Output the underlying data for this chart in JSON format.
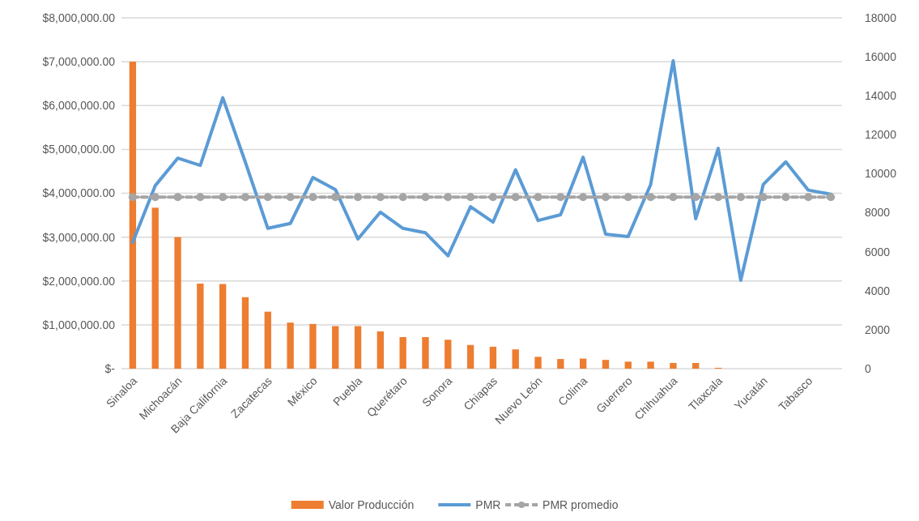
{
  "chart_data": {
    "type": "bar",
    "categories": [
      "Sinaloa",
      null,
      "Michoacán",
      null,
      "Baja California",
      null,
      "Zacatecas",
      null,
      "México",
      null,
      "Puebla",
      null,
      "Querétaro",
      null,
      "Sonora",
      null,
      "Chiapas",
      null,
      "Nuevo León",
      null,
      "Colima",
      null,
      "Guerrero",
      null,
      "Chihuahua",
      null,
      "Tlaxcala",
      null,
      "Yucatán",
      null,
      "Tabasco",
      null
    ],
    "series": [
      {
        "name": "Valor Producción",
        "color": "#ed7d31",
        "values": [
          7000000,
          3670000,
          3000000,
          1940000,
          1930000,
          1630000,
          1300000,
          1050000,
          1020000,
          970000,
          970000,
          850000,
          720000,
          720000,
          660000,
          540000,
          500000,
          440000,
          270000,
          220000,
          230000,
          200000,
          160000,
          160000,
          130000,
          130000,
          20000,
          0,
          0,
          0,
          0,
          0
        ]
      },
      {
        "name": "PMR",
        "type": "line",
        "axis": "y2",
        "color": "#5b9bd5",
        "marker": "none",
        "line_style": "solid",
        "values": [
          6480,
          9390,
          10800,
          10430,
          13900,
          10600,
          7200,
          7450,
          9810,
          9190,
          6650,
          8030,
          7200,
          6970,
          5790,
          8310,
          7520,
          10200,
          7600,
          7900,
          10850,
          6900,
          6780,
          9450,
          15800,
          7690,
          11300,
          4530,
          9450,
          10610,
          9160,
          8950
        ]
      },
      {
        "name": "PMR promedio",
        "type": "line",
        "axis": "y2",
        "color": "#a5a5a5",
        "marker": "circle",
        "line_style": "dashed",
        "values": [
          8800,
          8800,
          8800,
          8800,
          8800,
          8800,
          8800,
          8800,
          8800,
          8800,
          8800,
          8800,
          8800,
          8800,
          8800,
          8800,
          8800,
          8800,
          8800,
          8800,
          8800,
          8800,
          8800,
          8800,
          8800,
          8800,
          8800,
          8800,
          8800,
          8800,
          8800,
          8800
        ]
      }
    ],
    "ylim": [
      0,
      8000000
    ],
    "yticks": [
      {
        "value": 0,
        "label": "$-"
      },
      {
        "value": 1000000,
        "label": "$1,000,000.00"
      },
      {
        "value": 2000000,
        "label": "$2,000,000.00"
      },
      {
        "value": 3000000,
        "label": "$3,000,000.00"
      },
      {
        "value": 4000000,
        "label": "$4,000,000.00"
      },
      {
        "value": 5000000,
        "label": "$5,000,000.00"
      },
      {
        "value": 6000000,
        "label": "$6,000,000.00"
      },
      {
        "value": 7000000,
        "label": "$7,000,000.00"
      },
      {
        "value": 8000000,
        "label": "$8,000,000.00"
      }
    ],
    "y2lim": [
      0,
      18000
    ],
    "y2ticks": [
      0,
      2000,
      4000,
      6000,
      8000,
      10000,
      12000,
      14000,
      16000,
      18000
    ],
    "grid": "y",
    "legend": "bottom"
  }
}
